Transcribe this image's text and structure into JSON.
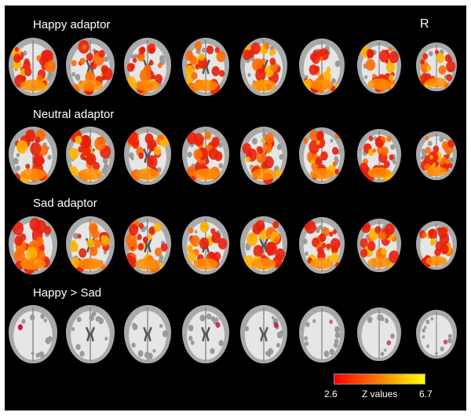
{
  "figure": {
    "orientation_marker": "R",
    "rows": [
      {
        "label": "Happy adaptor",
        "activation": "strong"
      },
      {
        "label": "Neutral adaptor",
        "activation": "strong"
      },
      {
        "label": "Sad adaptor",
        "activation": "strong"
      },
      {
        "label": "Happy > Sad",
        "activation": "sparse"
      }
    ],
    "slices_per_row": 8,
    "slice_view": "axial",
    "colorbar": {
      "min": "2.6",
      "max": "6.7",
      "label": "Z values",
      "colors": [
        "#ff0000",
        "#ff8c00",
        "#ffff00"
      ]
    }
  }
}
